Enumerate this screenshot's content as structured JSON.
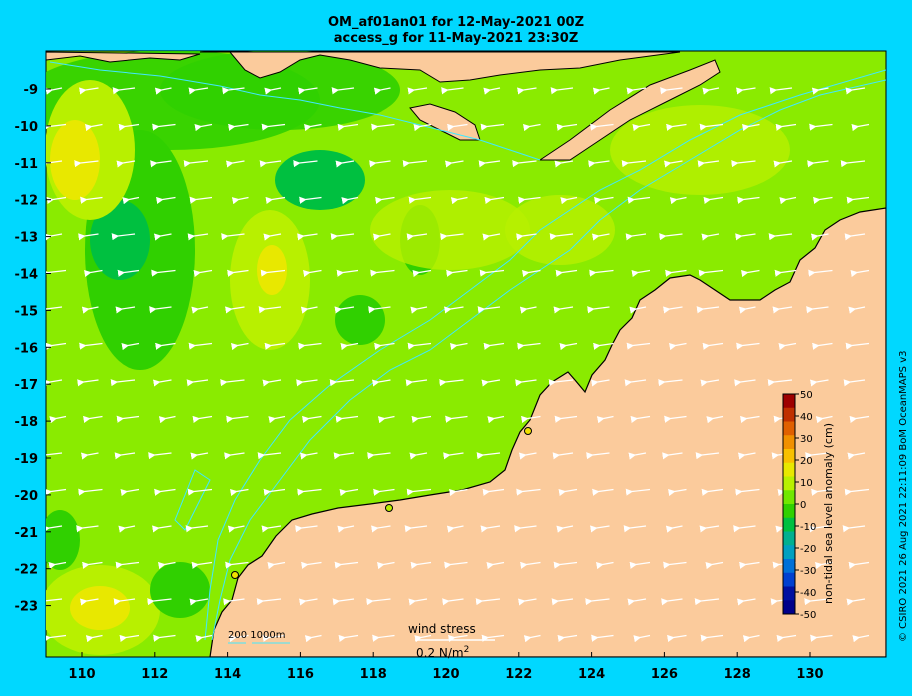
{
  "title_line1": "OM_af01an01 for 12-May-2021 00Z",
  "title_line2": "access_g for 11-May-2021 23:30Z",
  "credit": "© CSIRO 2021   26 Aug 2021 22:11:09 BoM OceanMAPS v3",
  "colorbar": {
    "label": "non-tidal sea level anomaly (cm)",
    "ticks": [
      "50",
      "40",
      "30",
      "20",
      "10",
      "0",
      "-10",
      "-20",
      "-30",
      "-40",
      "-50"
    ],
    "colors": [
      "#9e0000",
      "#c03000",
      "#e06000",
      "#f09000",
      "#f8c000",
      "#e8e800",
      "#b8f000",
      "#70e800",
      "#30d000",
      "#00c040",
      "#00b090",
      "#00a0c0",
      "#0070d8",
      "#0040d0",
      "#0010a0",
      "#00008a"
    ]
  },
  "y_ticks": [
    "-9",
    "-10",
    "-11",
    "-12",
    "-13",
    "-14",
    "-15",
    "-16",
    "-17",
    "-18",
    "-19",
    "-20",
    "-21",
    "-22",
    "-23"
  ],
  "x_ticks": [
    "110",
    "112",
    "114",
    "116",
    "118",
    "120",
    "122",
    "124",
    "126",
    "128",
    "130"
  ],
  "legend": {
    "wind_stress_label": "wind stress",
    "wind_stress_value": "0.2 N/m",
    "wind_stress_exp": "2",
    "bathy_label": "200  1000m"
  },
  "colors": {
    "land": "#fbcb9c",
    "ocean_base": "#8aeb00",
    "background": "#00d8ff"
  }
}
